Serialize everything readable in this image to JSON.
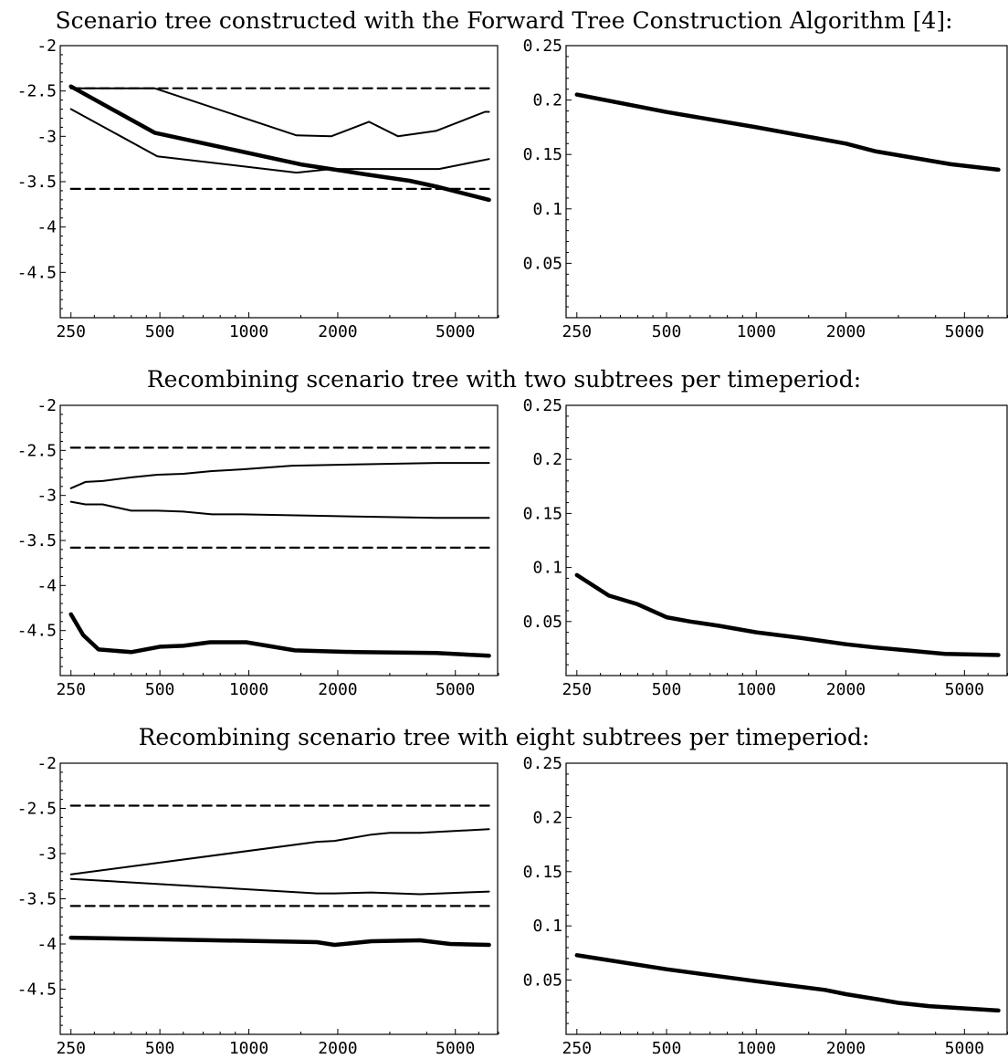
{
  "sections": [
    {
      "title": "Scenario tree constructed with the Forward Tree Construction Algorithm [4]:"
    },
    {
      "title": "Recombining scenario tree with two subtrees per timeperiod:"
    },
    {
      "title": "Recombining scenario tree with eight subtrees per timeperiod:"
    }
  ],
  "chart_data": [
    {
      "type": "line",
      "xscale": "log",
      "xticks": [
        250,
        500,
        1000,
        2000,
        5000
      ],
      "xlim": [
        230,
        7000
      ],
      "ylim": [
        -5.0,
        -2.0
      ],
      "yticks": [
        -2,
        -2.5,
        -3,
        -3.5,
        -4,
        -4.5
      ],
      "ytick_labels": [
        "-2",
        "-2.5",
        "-3",
        "-3.5",
        "-4",
        "-4.5"
      ],
      "grid": false,
      "series": [
        {
          "style": "dashed",
          "x": [
            250,
            6500
          ],
          "y": [
            -2.47,
            -2.47
          ]
        },
        {
          "style": "dashed",
          "x": [
            250,
            6500
          ],
          "y": [
            -3.58,
            -3.58
          ]
        },
        {
          "style": "thin",
          "x": [
            250,
            480,
            1450,
            1900,
            2550,
            3200,
            4300,
            6300,
            6500
          ],
          "y": [
            -2.47,
            -2.47,
            -2.99,
            -3.0,
            -2.84,
            -3.0,
            -2.94,
            -2.73,
            -2.73
          ]
        },
        {
          "style": "thin",
          "x": [
            250,
            490,
            1450,
            1900,
            3500,
            4400,
            6500
          ],
          "y": [
            -2.7,
            -3.22,
            -3.4,
            -3.36,
            -3.36,
            -3.36,
            -3.25
          ]
        },
        {
          "style": "thick",
          "x": [
            250,
            480,
            1500,
            2500,
            3500,
            4400,
            6500
          ],
          "y": [
            -2.45,
            -2.96,
            -3.31,
            -3.42,
            -3.49,
            -3.56,
            -3.7
          ]
        }
      ]
    },
    {
      "type": "line",
      "xscale": "log",
      "xticks": [
        250,
        500,
        1000,
        2000,
        5000
      ],
      "xlim": [
        230,
        7000
      ],
      "ylim": [
        0.0,
        0.25
      ],
      "yticks": [
        0.25,
        0.2,
        0.15,
        0.1,
        0.05
      ],
      "ytick_labels": [
        "0.25",
        "0.2",
        "0.15",
        "0.1",
        "0.05"
      ],
      "grid": false,
      "series": [
        {
          "style": "thick",
          "x": [
            250,
            500,
            1000,
            2000,
            2500,
            4500,
            6500
          ],
          "y": [
            0.205,
            0.189,
            0.175,
            0.16,
            0.153,
            0.141,
            0.136
          ]
        }
      ]
    },
    {
      "type": "line",
      "xscale": "log",
      "xticks": [
        250,
        500,
        1000,
        2000,
        5000
      ],
      "xlim": [
        230,
        7000
      ],
      "ylim": [
        -5.0,
        -2.0
      ],
      "yticks": [
        -2,
        -2.5,
        -3,
        -3.5,
        -4,
        -4.5
      ],
      "ytick_labels": [
        "-2",
        "-2.5",
        "-3",
        "-3.5",
        "-4",
        "-4.5"
      ],
      "grid": false,
      "series": [
        {
          "style": "dashed",
          "x": [
            250,
            6500
          ],
          "y": [
            -2.47,
            -2.47
          ]
        },
        {
          "style": "dashed",
          "x": [
            250,
            6500
          ],
          "y": [
            -3.58,
            -3.58
          ]
        },
        {
          "style": "thin",
          "x": [
            250,
            280,
            320,
            400,
            490,
            600,
            750,
            950,
            1400,
            2000,
            4300,
            6500
          ],
          "y": [
            -2.92,
            -2.85,
            -2.84,
            -2.8,
            -2.77,
            -2.76,
            -2.73,
            -2.71,
            -2.67,
            -2.66,
            -2.64,
            -2.64
          ]
        },
        {
          "style": "thin",
          "x": [
            250,
            280,
            320,
            400,
            490,
            600,
            750,
            950,
            2000,
            4300,
            6500
          ],
          "y": [
            -3.07,
            -3.1,
            -3.1,
            -3.17,
            -3.17,
            -3.18,
            -3.21,
            -3.21,
            -3.23,
            -3.25,
            -3.25
          ]
        },
        {
          "style": "thick",
          "x": [
            250,
            275,
            310,
            400,
            500,
            600,
            740,
            980,
            1430,
            2300,
            4300,
            6500
          ],
          "y": [
            -4.32,
            -4.55,
            -4.71,
            -4.74,
            -4.68,
            -4.67,
            -4.63,
            -4.63,
            -4.72,
            -4.74,
            -4.75,
            -4.78
          ]
        }
      ]
    },
    {
      "type": "line",
      "xscale": "log",
      "xticks": [
        250,
        500,
        1000,
        2000,
        5000
      ],
      "xlim": [
        230,
        7000
      ],
      "ylim": [
        0.0,
        0.25
      ],
      "yticks": [
        0.25,
        0.2,
        0.15,
        0.1,
        0.05
      ],
      "ytick_labels": [
        "0.25",
        "0.2",
        "0.15",
        "0.1",
        "0.05"
      ],
      "grid": false,
      "series": [
        {
          "style": "thick",
          "x": [
            250,
            320,
            400,
            500,
            600,
            750,
            1000,
            1400,
            2000,
            2500,
            3300,
            4300,
            6500
          ],
          "y": [
            0.093,
            0.074,
            0.066,
            0.054,
            0.05,
            0.046,
            0.04,
            0.035,
            0.029,
            0.026,
            0.023,
            0.02,
            0.019
          ]
        }
      ]
    },
    {
      "type": "line",
      "xscale": "log",
      "xticks": [
        250,
        500,
        1000,
        2000,
        5000
      ],
      "xlim": [
        230,
        7000
      ],
      "ylim": [
        -5.0,
        -2.0
      ],
      "yticks": [
        -2,
        -2.5,
        -3,
        -3.5,
        -4,
        -4.5
      ],
      "ytick_labels": [
        "-2",
        "-2.5",
        "-3",
        "-3.5",
        "-4",
        "-4.5"
      ],
      "grid": false,
      "series": [
        {
          "style": "dashed",
          "x": [
            250,
            6500
          ],
          "y": [
            -2.47,
            -2.47
          ]
        },
        {
          "style": "dashed",
          "x": [
            250,
            6500
          ],
          "y": [
            -3.58,
            -3.58
          ]
        },
        {
          "style": "thin",
          "x": [
            250,
            1700,
            1950,
            2600,
            3000,
            3800,
            6500
          ],
          "y": [
            -3.23,
            -2.87,
            -2.86,
            -2.79,
            -2.77,
            -2.77,
            -2.73
          ]
        },
        {
          "style": "thin",
          "x": [
            250,
            1700,
            1950,
            2600,
            3800,
            6500
          ],
          "y": [
            -3.28,
            -3.44,
            -3.44,
            -3.43,
            -3.45,
            -3.42
          ]
        },
        {
          "style": "thick",
          "x": [
            250,
            1700,
            1950,
            2600,
            3800,
            4800,
            6500
          ],
          "y": [
            -3.93,
            -3.98,
            -4.01,
            -3.97,
            -3.96,
            -4.0,
            -4.01
          ]
        }
      ]
    },
    {
      "type": "line",
      "xscale": "log",
      "xticks": [
        250,
        500,
        1000,
        2000,
        5000
      ],
      "xlim": [
        230,
        7000
      ],
      "ylim": [
        0.0,
        0.25
      ],
      "yticks": [
        0.25,
        0.2,
        0.15,
        0.1,
        0.05
      ],
      "ytick_labels": [
        "0.25",
        "0.2",
        "0.15",
        "0.1",
        "0.05"
      ],
      "grid": false,
      "series": [
        {
          "style": "thick",
          "x": [
            250,
            500,
            1000,
            1700,
            2000,
            2600,
            3000,
            3800,
            6500
          ],
          "y": [
            0.073,
            0.06,
            0.049,
            0.041,
            0.037,
            0.032,
            0.029,
            0.026,
            0.022
          ]
        }
      ]
    }
  ]
}
